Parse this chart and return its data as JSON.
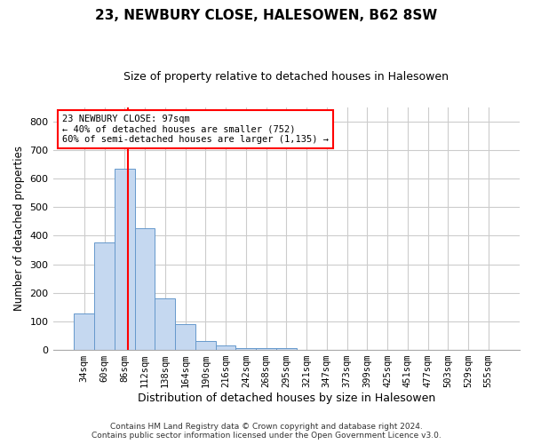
{
  "title1": "23, NEWBURY CLOSE, HALESOWEN, B62 8SW",
  "title2": "Size of property relative to detached houses in Halesowen",
  "xlabel": "Distribution of detached houses by size in Halesowen",
  "ylabel": "Number of detached properties",
  "bar_color": "#c5d8f0",
  "bar_edge_color": "#6699cc",
  "bin_labels": [
    "34sqm",
    "60sqm",
    "86sqm",
    "112sqm",
    "138sqm",
    "164sqm",
    "190sqm",
    "216sqm",
    "242sqm",
    "268sqm",
    "295sqm",
    "321sqm",
    "347sqm",
    "373sqm",
    "399sqm",
    "425sqm",
    "451sqm",
    "477sqm",
    "503sqm",
    "529sqm",
    "555sqm"
  ],
  "bar_values": [
    127,
    375,
    633,
    425,
    182,
    90,
    32,
    15,
    8,
    7,
    8,
    0,
    0,
    0,
    0,
    0,
    0,
    0,
    0,
    0,
    0
  ],
  "ylim": [
    0,
    850
  ],
  "yticks": [
    0,
    100,
    200,
    300,
    400,
    500,
    600,
    700,
    800
  ],
  "annotation_text": "23 NEWBURY CLOSE: 97sqm\n← 40% of detached houses are smaller (752)\n60% of semi-detached houses are larger (1,135) →",
  "vline_x_idx": 2.15,
  "footer_text": "Contains HM Land Registry data © Crown copyright and database right 2024.\nContains public sector information licensed under the Open Government Licence v3.0.",
  "background_color": "#ffffff",
  "grid_color": "#cccccc"
}
